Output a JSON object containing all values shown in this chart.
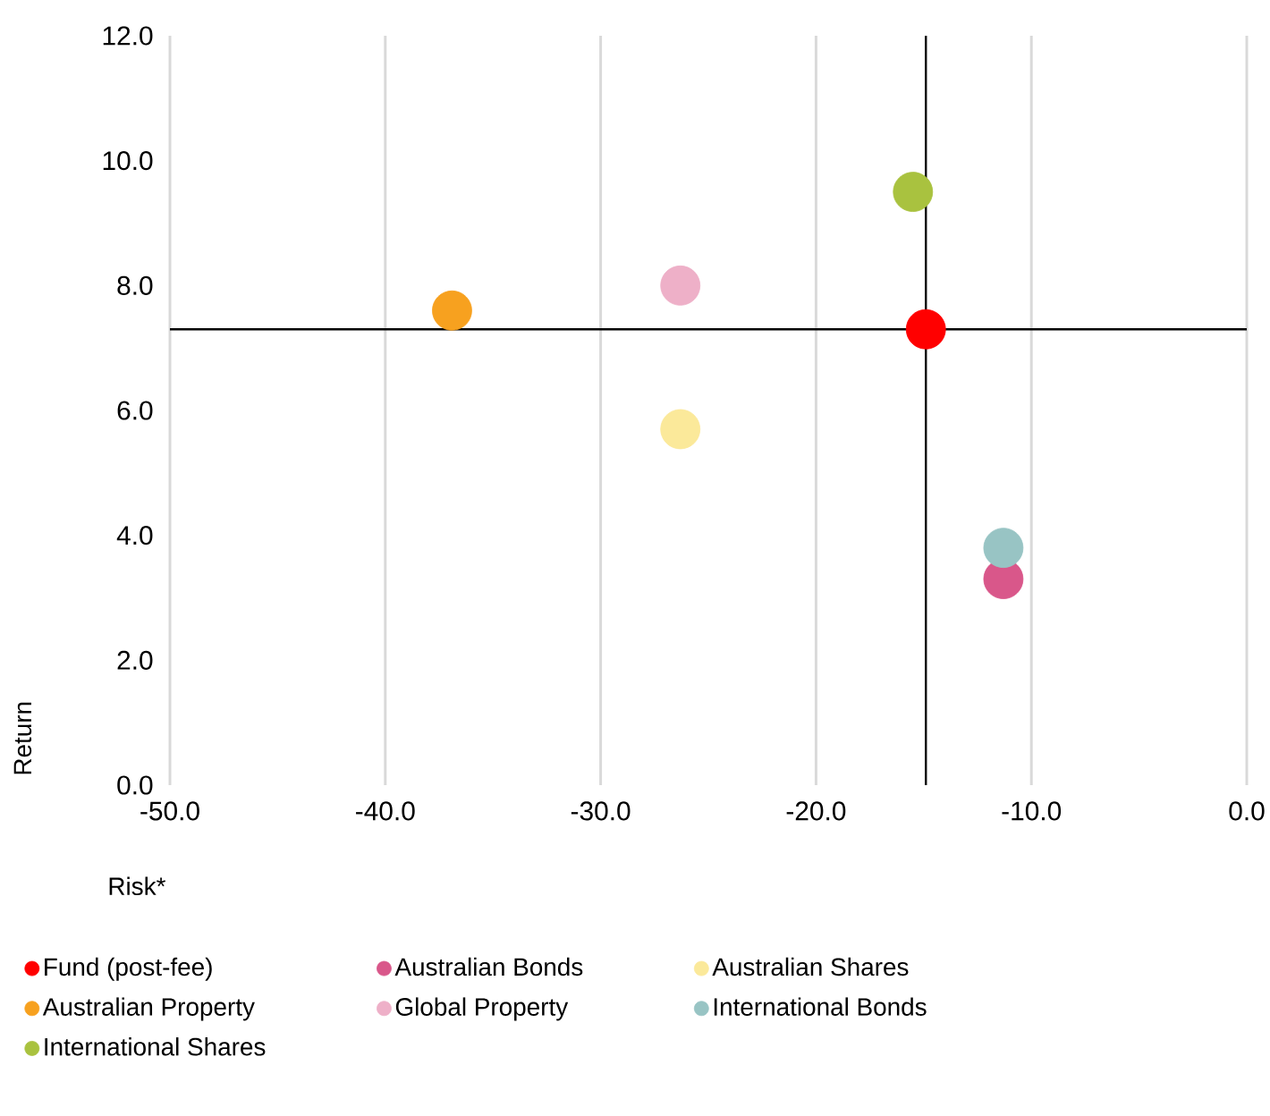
{
  "chart_data": {
    "type": "scatter",
    "xlabel": "Risk*",
    "ylabel": "Return",
    "xlim": [
      -50,
      0
    ],
    "ylim": [
      0,
      12
    ],
    "xticks": [
      {
        "value": -50,
        "label": "-50.0"
      },
      {
        "value": -40,
        "label": "-40.0"
      },
      {
        "value": -30,
        "label": "-30.0"
      },
      {
        "value": -20,
        "label": "-20.0"
      },
      {
        "value": -10,
        "label": "-10.0"
      },
      {
        "value": 0,
        "label": "0.0"
      }
    ],
    "yticks": [
      {
        "value": 0,
        "label": "0.0"
      },
      {
        "value": 2,
        "label": "2.0"
      },
      {
        "value": 4,
        "label": "4.0"
      },
      {
        "value": 6,
        "label": "6.0"
      },
      {
        "value": 8,
        "label": "8.0"
      },
      {
        "value": 10,
        "label": "10.0"
      },
      {
        "value": 12,
        "label": "12.0"
      }
    ],
    "grid": "x",
    "legend": "bottom",
    "ref_lines": [
      {
        "axis": "x",
        "value": -14.9,
        "color": "#000000"
      },
      {
        "axis": "y",
        "value": 7.3,
        "color": "#000000"
      }
    ],
    "series": [
      {
        "name": "Fund (post-fee)",
        "color": "#ff0000",
        "x": [
          -14.9
        ],
        "values": [
          7.3
        ]
      },
      {
        "name": "Australian Bonds",
        "color": "#d9578a",
        "x": [
          -11.3
        ],
        "values": [
          3.3
        ]
      },
      {
        "name": "Australian Shares",
        "color": "#fbe99a",
        "x": [
          -26.3
        ],
        "values": [
          5.7
        ]
      },
      {
        "name": "Australian Property",
        "color": "#f7a11f",
        "x": [
          -36.9
        ],
        "values": [
          7.6
        ]
      },
      {
        "name": "Global Property",
        "color": "#eeb0c8",
        "x": [
          -26.3
        ],
        "values": [
          8.0
        ]
      },
      {
        "name": "International Bonds",
        "color": "#98c4c4",
        "x": [
          -11.3
        ],
        "values": [
          3.8
        ]
      },
      {
        "name": "International Shares",
        "color": "#a9c23f",
        "x": [
          -15.5
        ],
        "values": [
          9.5
        ]
      }
    ]
  }
}
